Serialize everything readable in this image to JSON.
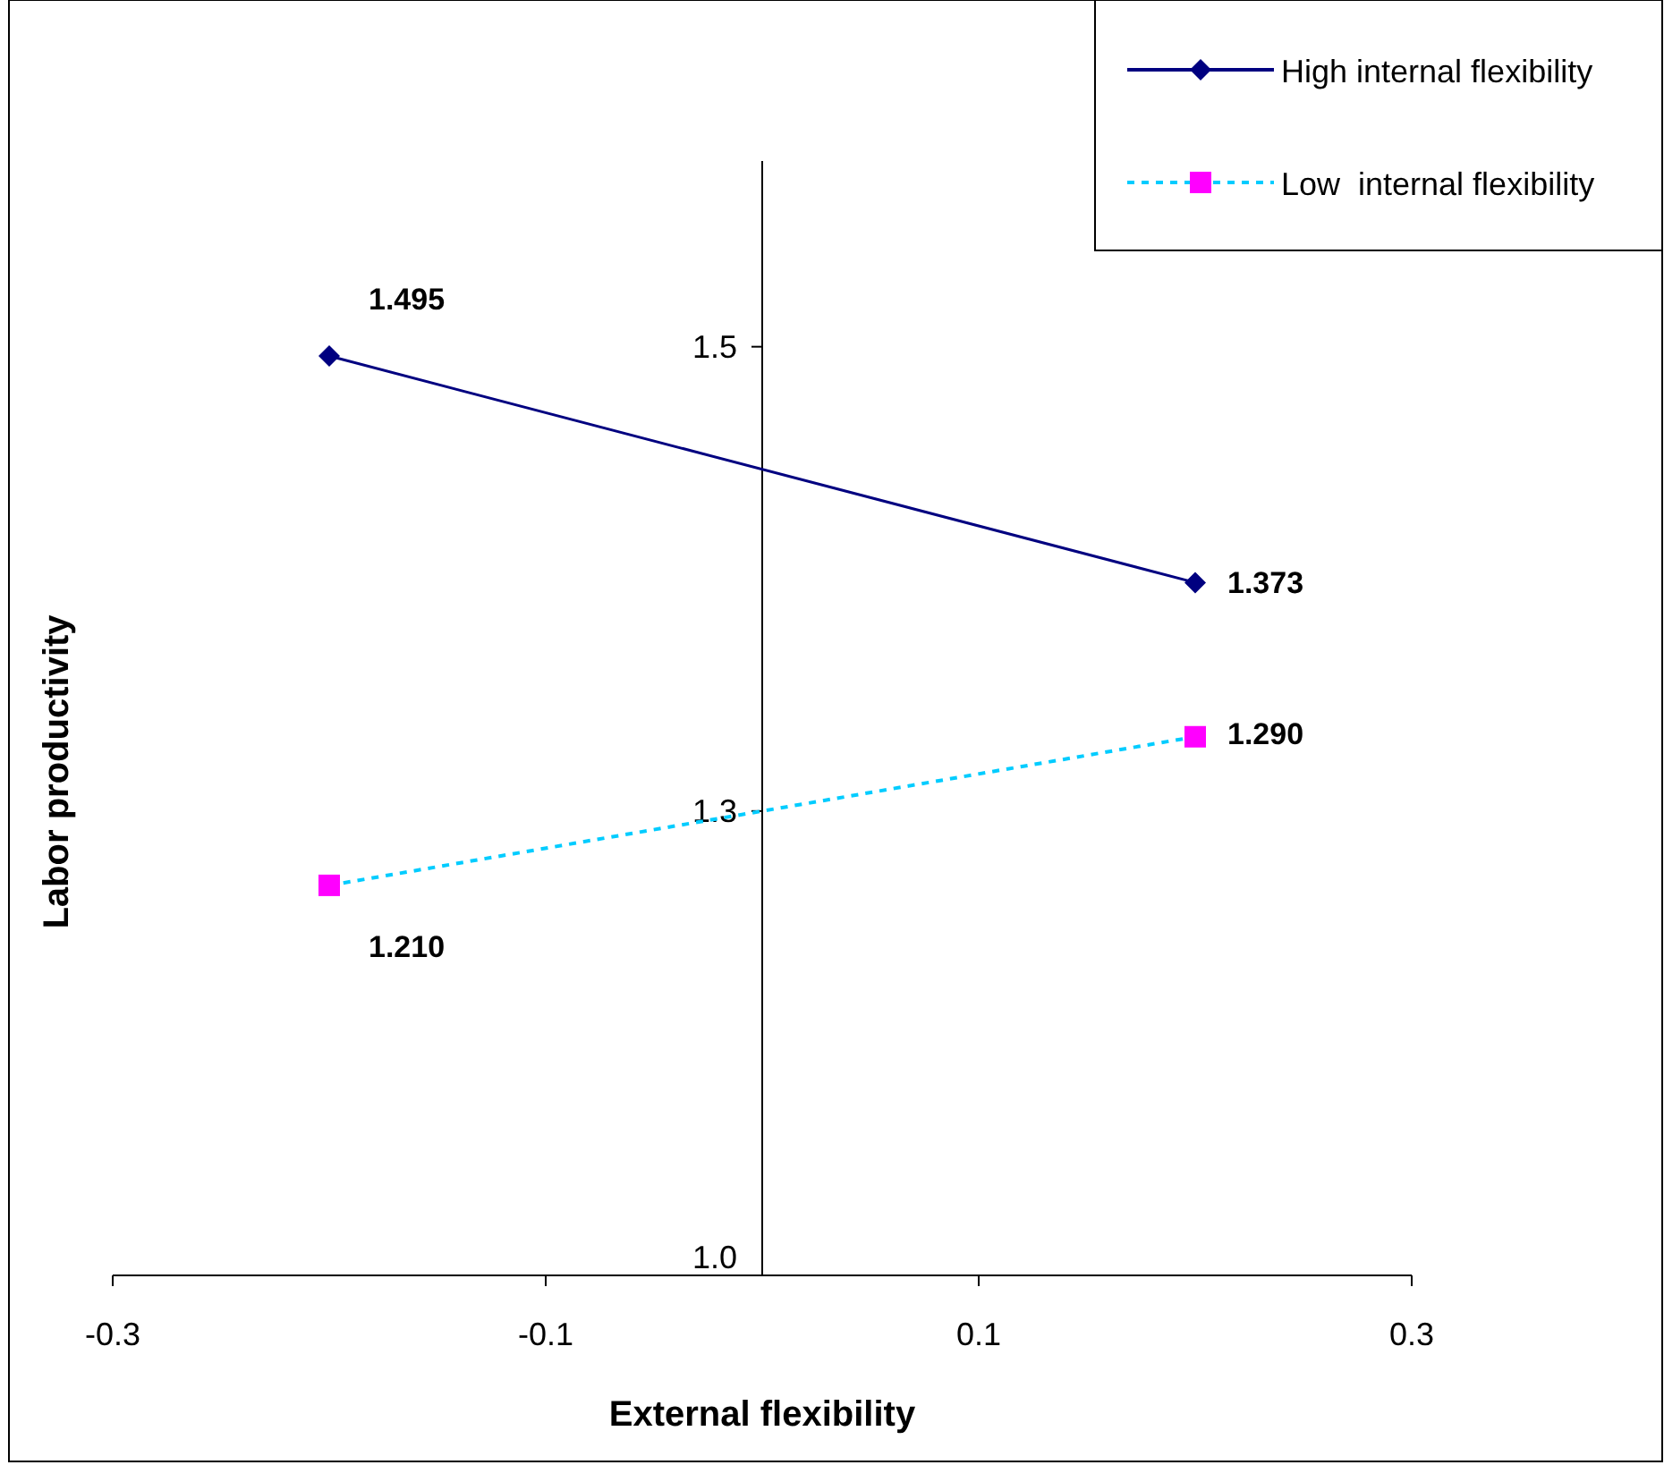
{
  "chart_data": {
    "type": "line",
    "xlabel": "External flexibility",
    "ylabel": "Labor productivity",
    "x": [
      -0.2,
      0.2
    ],
    "series": [
      {
        "name": "High internal flexibility",
        "color": "#000080",
        "values": [
          1.495,
          1.373
        ],
        "value_labels": [
          "1.495",
          "1.373"
        ],
        "marker": "diamond",
        "line_style": "solid"
      },
      {
        "name": "Low  internal flexibility",
        "color": "#00ccff",
        "values": [
          1.21,
          1.29
        ],
        "value_labels": [
          "1.210",
          "1.290"
        ],
        "marker": "square",
        "line_style": "dashed",
        "colors": [
          "#ff00ff",
          "#ff00ff"
        ]
      }
    ],
    "xlim": [
      -0.3,
      0.3
    ],
    "xticks": [
      -0.3,
      -0.1,
      0.1,
      0.3
    ],
    "ylim": [
      1.0,
      1.6
    ],
    "yticks": [
      {
        "value": 1.0,
        "label": "1.0"
      },
      {
        "value": 1.25,
        "label": "1.3"
      },
      {
        "value": 1.5,
        "label": "1.5"
      }
    ],
    "legend": "top right"
  }
}
